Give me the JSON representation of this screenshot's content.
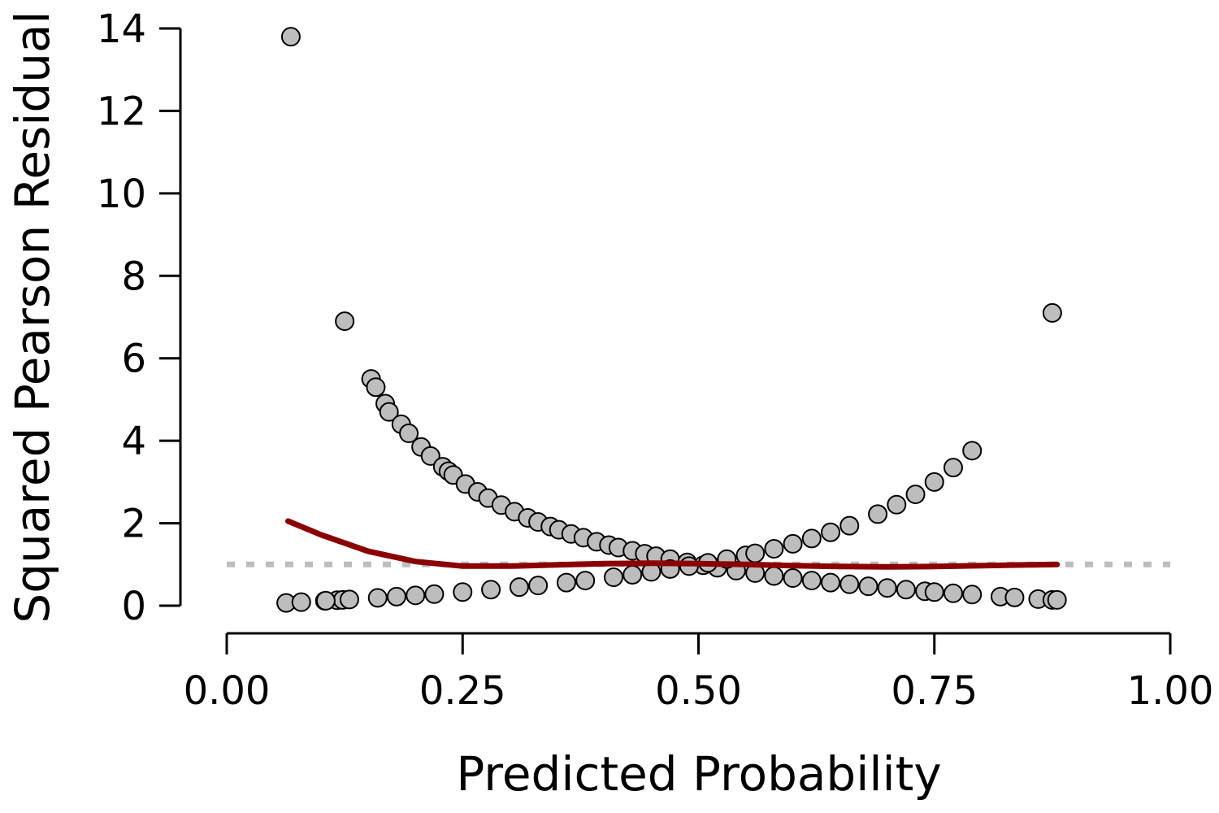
{
  "chart_data": {
    "type": "scatter",
    "xlabel": "Predicted Probability",
    "ylabel": "Squared Pearson Residual",
    "xlim": [
      0,
      1
    ],
    "ylim": [
      0,
      14
    ],
    "x_ticks": [
      "0.00",
      "0.25",
      "0.50",
      "0.75",
      "1.00"
    ],
    "y_ticks": [
      "0",
      "2",
      "4",
      "6",
      "8",
      "10",
      "12",
      "14"
    ],
    "grid": false,
    "reference_line": {
      "y": 1,
      "style": "dotted",
      "color": "#bdbdbd"
    },
    "colors": {
      "points_fill": "#bdbdbd",
      "points_stroke": "#000000",
      "smooth": "#8b0000"
    },
    "series": [
      {
        "type": "scatter",
        "x": [
          0.063,
          0.068,
          0.079,
          0.104,
          0.117,
          0.123,
          0.153,
          0.158,
          0.168,
          0.172,
          0.185,
          0.193,
          0.206,
          0.216,
          0.229,
          0.235,
          0.24,
          0.253,
          0.266,
          0.277,
          0.291,
          0.305,
          0.319,
          0.33,
          0.343,
          0.352,
          0.365,
          0.378,
          0.392,
          0.405,
          0.415,
          0.43,
          0.443,
          0.455,
          0.47,
          0.488,
          0.505,
          0.52,
          0.54,
          0.56,
          0.58,
          0.6,
          0.62,
          0.64,
          0.66,
          0.68,
          0.7,
          0.72,
          0.74,
          0.75,
          0.77,
          0.79,
          0.82,
          0.835,
          0.86,
          0.875,
          0.88,
          0.105,
          0.13,
          0.16,
          0.18,
          0.2,
          0.22,
          0.25,
          0.28,
          0.31,
          0.33,
          0.36,
          0.38,
          0.41,
          0.43,
          0.45,
          0.47,
          0.49,
          0.51,
          0.53,
          0.55,
          0.56,
          0.58,
          0.6,
          0.62,
          0.64,
          0.66,
          0.69,
          0.71,
          0.73,
          0.75,
          0.77,
          0.79,
          0.875,
          0.125
        ],
        "y": [
          0.067,
          13.8,
          0.086,
          0.117,
          0.133,
          0.14,
          5.5,
          5.3,
          4.9,
          4.7,
          4.4,
          4.18,
          3.85,
          3.63,
          3.37,
          3.26,
          3.17,
          2.95,
          2.76,
          2.61,
          2.44,
          2.28,
          2.13,
          2.03,
          1.92,
          1.84,
          1.74,
          1.65,
          1.55,
          1.47,
          1.41,
          1.33,
          1.26,
          1.2,
          1.13,
          1.05,
          0.98,
          0.92,
          0.85,
          0.79,
          0.72,
          0.67,
          0.61,
          0.56,
          0.52,
          0.47,
          0.43,
          0.39,
          0.35,
          0.33,
          0.3,
          0.27,
          0.22,
          0.2,
          0.16,
          0.14,
          0.14,
          0.12,
          0.15,
          0.19,
          0.22,
          0.25,
          0.28,
          0.33,
          0.39,
          0.45,
          0.49,
          0.56,
          0.61,
          0.69,
          0.75,
          0.82,
          0.89,
          0.96,
          1.04,
          1.13,
          1.22,
          1.27,
          1.38,
          1.5,
          1.63,
          1.78,
          1.94,
          2.22,
          2.45,
          2.7,
          3.0,
          3.35,
          3.76,
          7.1,
          6.9
        ]
      },
      {
        "type": "line",
        "x": [
          0.065,
          0.1,
          0.15,
          0.2,
          0.25,
          0.3,
          0.35,
          0.4,
          0.45,
          0.5,
          0.55,
          0.6,
          0.65,
          0.7,
          0.75,
          0.8,
          0.85,
          0.88
        ],
        "y": [
          2.05,
          1.72,
          1.32,
          1.07,
          0.96,
          0.96,
          0.99,
          1.02,
          1.03,
          1.02,
          1.0,
          0.97,
          0.95,
          0.94,
          0.95,
          0.97,
          0.99,
          1.0
        ]
      }
    ]
  }
}
